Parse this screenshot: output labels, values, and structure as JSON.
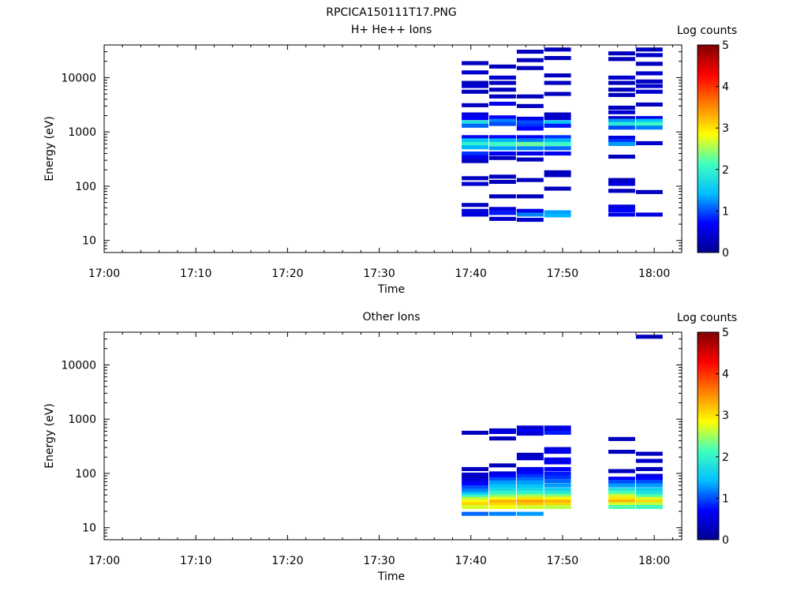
{
  "figure_title": "RPCICA150111T17.PNG",
  "colormap": [
    "#00008f",
    "#0000ff",
    "#00bfff",
    "#40ffbf",
    "#ffff00",
    "#ff8000",
    "#ff0000",
    "#800000"
  ],
  "chart_data": [
    {
      "type": "heatmap",
      "title": "H+ He++ Ions",
      "xlabel": "Time",
      "ylabel": "Energy (eV)",
      "colorbar_label": "Log counts",
      "colorbar_ticks": [
        "0",
        "1",
        "2",
        "3",
        "4",
        "5"
      ],
      "clim": [
        0,
        5
      ],
      "xlim": [
        "17:00",
        "18:03"
      ],
      "xticks": [
        "17:00",
        "17:10",
        "17:20",
        "17:30",
        "17:40",
        "17:50",
        "18:00"
      ],
      "ylim": [
        6,
        40000
      ],
      "yscale": "log",
      "yticks": [
        "10",
        "100",
        "1000",
        "10000"
      ],
      "ytick_values": [
        10,
        100,
        1000,
        10000
      ],
      "columns": [
        {
          "start": "17:39",
          "end": "17:42",
          "cells": [
            [
              18500,
              0.3
            ],
            [
              12500,
              0.4
            ],
            [
              8000,
              0.3
            ],
            [
              7000,
              0.4
            ],
            [
              5500,
              0.3
            ],
            [
              3100,
              0.3
            ],
            [
              2100,
              0.5
            ],
            [
              1800,
              0.7
            ],
            [
              1500,
              1.8
            ],
            [
              1300,
              1.1
            ],
            [
              800,
              0.6
            ],
            [
              700,
              1.5
            ],
            [
              600,
              2.0
            ],
            [
              520,
              1.4
            ],
            [
              400,
              0.9
            ],
            [
              340,
              0.6
            ],
            [
              290,
              0.3
            ],
            [
              140,
              0.3
            ],
            [
              110,
              0.4
            ],
            [
              45,
              0.3
            ],
            [
              35,
              0.5
            ],
            [
              30,
              0.5
            ]
          ]
        },
        {
          "start": "17:42",
          "end": "17:45",
          "cells": [
            [
              16000,
              0.3
            ],
            [
              10000,
              0.4
            ],
            [
              8000,
              0.3
            ],
            [
              6000,
              0.3
            ],
            [
              4500,
              0.3
            ],
            [
              3300,
              0.6
            ],
            [
              1850,
              0.7
            ],
            [
              1600,
              1.2
            ],
            [
              1400,
              1.0
            ],
            [
              800,
              0.7
            ],
            [
              700,
              1.4
            ],
            [
              600,
              2.1
            ],
            [
              500,
              1.3
            ],
            [
              400,
              0.6
            ],
            [
              330,
              0.3
            ],
            [
              150,
              0.3
            ],
            [
              120,
              0.3
            ],
            [
              65,
              0.3
            ],
            [
              38,
              0.5
            ],
            [
              32,
              0.8
            ],
            [
              25,
              0.4
            ]
          ]
        },
        {
          "start": "17:45",
          "end": "17:48",
          "cells": [
            [
              30000,
              0.3
            ],
            [
              21000,
              0.3
            ],
            [
              15000,
              0.3
            ],
            [
              4500,
              0.3
            ],
            [
              3000,
              0.3
            ],
            [
              1750,
              0.6
            ],
            [
              1500,
              1.0
            ],
            [
              1300,
              0.9
            ],
            [
              1150,
              0.7
            ],
            [
              800,
              0.7
            ],
            [
              700,
              1.2
            ],
            [
              600,
              2.3
            ],
            [
              500,
              1.2
            ],
            [
              400,
              0.6
            ],
            [
              310,
              0.3
            ],
            [
              130,
              0.3
            ],
            [
              65,
              0.3
            ],
            [
              35,
              0.6
            ],
            [
              30,
              1.2
            ],
            [
              24,
              0.4
            ]
          ]
        },
        {
          "start": "17:48",
          "end": "17:51",
          "cells": [
            [
              33000,
              0.3
            ],
            [
              23000,
              0.3
            ],
            [
              11000,
              0.3
            ],
            [
              8000,
              0.3
            ],
            [
              5000,
              0.3
            ],
            [
              2100,
              0.3
            ],
            [
              1800,
              0.4
            ],
            [
              1500,
              1.5
            ],
            [
              1300,
              0.8
            ],
            [
              800,
              0.9
            ],
            [
              700,
              1.4
            ],
            [
              600,
              2.1
            ],
            [
              500,
              1.1
            ],
            [
              400,
              0.6
            ],
            [
              180,
              0.3
            ],
            [
              160,
              0.3
            ],
            [
              90,
              0.3
            ],
            [
              33,
              1.3
            ],
            [
              29,
              1.4
            ]
          ]
        },
        {
          "start": "17:55",
          "end": "17:58",
          "cells": [
            [
              28000,
              0.3
            ],
            [
              22000,
              0.3
            ],
            [
              10000,
              0.4
            ],
            [
              8000,
              0.3
            ],
            [
              6000,
              0.3
            ],
            [
              4800,
              0.3
            ],
            [
              2800,
              0.3
            ],
            [
              2300,
              0.4
            ],
            [
              1800,
              0.4
            ],
            [
              1600,
              1.3
            ],
            [
              1400,
              1.9
            ],
            [
              1200,
              1.0
            ],
            [
              780,
              0.5
            ],
            [
              680,
              0.9
            ],
            [
              600,
              1.3
            ],
            [
              350,
              0.3
            ],
            [
              130,
              0.3
            ],
            [
              110,
              0.5
            ],
            [
              82,
              0.3
            ],
            [
              42,
              0.5
            ],
            [
              36,
              0.7
            ],
            [
              30,
              0.6
            ]
          ]
        },
        {
          "start": "17:58",
          "end": "18:01",
          "cells": [
            [
              33000,
              0.3
            ],
            [
              26000,
              0.4
            ],
            [
              18000,
              0.3
            ],
            [
              12000,
              0.4
            ],
            [
              8500,
              0.3
            ],
            [
              7000,
              0.4
            ],
            [
              5500,
              0.4
            ],
            [
              3200,
              0.3
            ],
            [
              1800,
              0.6
            ],
            [
              1600,
              1.5
            ],
            [
              1400,
              2.1
            ],
            [
              1200,
              1.2
            ],
            [
              620,
              0.4
            ],
            [
              78,
              0.3
            ],
            [
              30,
              0.5
            ]
          ]
        }
      ]
    },
    {
      "type": "heatmap",
      "title": "Other Ions",
      "xlabel": "Time",
      "ylabel": "Energy (eV)",
      "colorbar_label": "Log counts",
      "colorbar_ticks": [
        "0",
        "1",
        "2",
        "3",
        "4",
        "5"
      ],
      "clim": [
        0,
        5
      ],
      "xlim": [
        "17:00",
        "18:03"
      ],
      "xticks": [
        "17:00",
        "17:10",
        "17:20",
        "17:30",
        "17:40",
        "17:50",
        "18:00"
      ],
      "ylim": [
        6,
        40000
      ],
      "yscale": "log",
      "yticks": [
        "10",
        "100",
        "1000",
        "10000"
      ],
      "ytick_values": [
        10,
        100,
        1000,
        10000
      ],
      "columns": [
        {
          "start": "17:39",
          "end": "17:42",
          "cells": [
            [
              560,
              0.3
            ],
            [
              120,
              0.3
            ],
            [
              95,
              0.4
            ],
            [
              85,
              0.3
            ],
            [
              75,
              0.5
            ],
            [
              65,
              0.7
            ],
            [
              55,
              1.0
            ],
            [
              48,
              1.2
            ],
            [
              42,
              1.5
            ],
            [
              38,
              2.0
            ],
            [
              34,
              2.6
            ],
            [
              30,
              2.9
            ],
            [
              27,
              3.1
            ],
            [
              24,
              2.7
            ],
            [
              18,
              1.1
            ]
          ]
        },
        {
          "start": "17:42",
          "end": "17:45",
          "cells": [
            [
              620,
              0.4
            ],
            [
              580,
              0.5
            ],
            [
              440,
              0.3
            ],
            [
              140,
              0.3
            ],
            [
              100,
              0.5
            ],
            [
              88,
              0.7
            ],
            [
              78,
              1.0
            ],
            [
              68,
              1.3
            ],
            [
              58,
              1.5
            ],
            [
              50,
              1.7
            ],
            [
              44,
              2.0
            ],
            [
              38,
              2.4
            ],
            [
              34,
              2.8
            ],
            [
              30,
              3.3
            ],
            [
              27,
              3.1
            ],
            [
              24,
              2.8
            ],
            [
              18,
              1.2
            ]
          ]
        },
        {
          "start": "17:45",
          "end": "17:48",
          "cells": [
            [
              700,
              0.4
            ],
            [
              600,
              0.7
            ],
            [
              540,
              0.5
            ],
            [
              220,
              0.3
            ],
            [
              190,
              0.4
            ],
            [
              120,
              0.6
            ],
            [
              105,
              0.7
            ],
            [
              90,
              0.9
            ],
            [
              78,
              1.1
            ],
            [
              68,
              1.3
            ],
            [
              58,
              1.5
            ],
            [
              50,
              1.7
            ],
            [
              44,
              2.0
            ],
            [
              38,
              2.5
            ],
            [
              34,
              3.0
            ],
            [
              30,
              3.4
            ],
            [
              27,
              3.2
            ],
            [
              24,
              2.7
            ],
            [
              18,
              1.3
            ]
          ]
        },
        {
          "start": "17:48",
          "end": "17:51",
          "cells": [
            [
              700,
              0.5
            ],
            [
              620,
              0.6
            ],
            [
              560,
              0.8
            ],
            [
              280,
              0.5
            ],
            [
              250,
              0.6
            ],
            [
              180,
              0.6
            ],
            [
              160,
              0.6
            ],
            [
              120,
              0.7
            ],
            [
              100,
              0.8
            ],
            [
              85,
              0.9
            ],
            [
              72,
              1.1
            ],
            [
              60,
              1.3
            ],
            [
              50,
              1.6
            ],
            [
              44,
              1.9
            ],
            [
              38,
              2.4
            ],
            [
              34,
              2.9
            ],
            [
              30,
              3.3
            ],
            [
              27,
              3.1
            ],
            [
              24,
              2.6
            ]
          ]
        },
        {
          "start": "17:55",
          "end": "17:58",
          "cells": [
            [
              430,
              0.3
            ],
            [
              250,
              0.3
            ],
            [
              110,
              0.3
            ],
            [
              80,
              0.7
            ],
            [
              70,
              1.0
            ],
            [
              60,
              1.3
            ],
            [
              50,
              1.8
            ],
            [
              44,
              2.2
            ],
            [
              38,
              2.7
            ],
            [
              34,
              3.0
            ],
            [
              30,
              3.3
            ],
            [
              27,
              2.7
            ],
            [
              24,
              2.2
            ]
          ]
        },
        {
          "start": "17:58",
          "end": "18:01",
          "cells": [
            [
              33000,
              0.3
            ],
            [
              230,
              0.3
            ],
            [
              170,
              0.4
            ],
            [
              120,
              0.3
            ],
            [
              90,
              0.5
            ],
            [
              80,
              0.7
            ],
            [
              70,
              1.0
            ],
            [
              60,
              1.3
            ],
            [
              50,
              1.6
            ],
            [
              44,
              1.8
            ],
            [
              38,
              2.2
            ],
            [
              34,
              2.7
            ],
            [
              30,
              3.1
            ],
            [
              27,
              2.6
            ],
            [
              24,
              2.1
            ]
          ]
        }
      ]
    }
  ]
}
